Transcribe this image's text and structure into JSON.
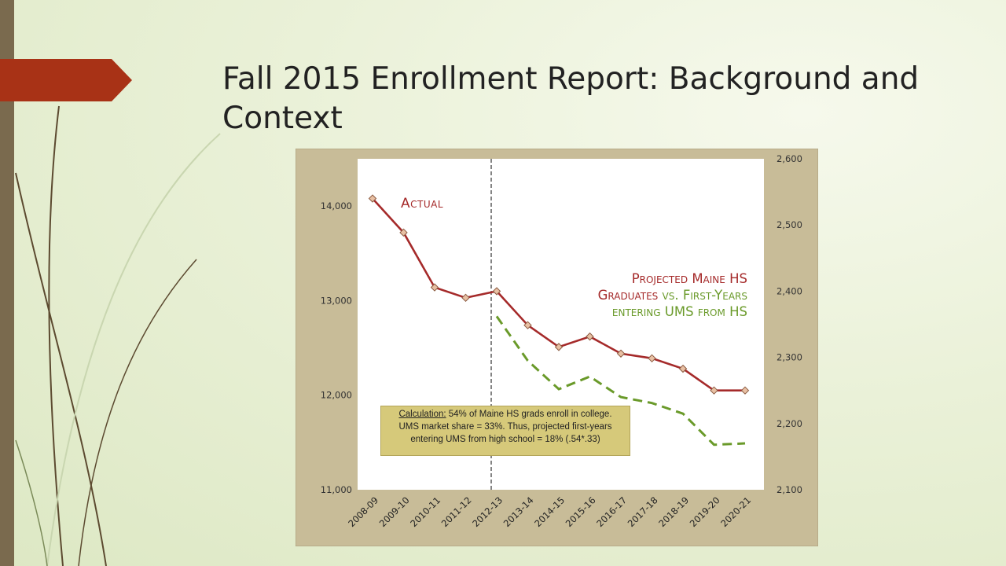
{
  "slide": {
    "title": "Fall 2015 Enrollment Report:  Background and Context"
  },
  "labels": {
    "actual": "Actual",
    "proj_line1_red": "Projected Maine HS",
    "proj_line2_red": "Graduates",
    "proj_line2_vs": "vs.",
    "proj_line2_green": "First-Years",
    "proj_line3_green": "entering  UMS from HS"
  },
  "calculation_box": {
    "heading": "Calculation:",
    "line1_rest": "  54% of Maine HS grads enroll in college.",
    "line2": "UMS market share = 33%.  Thus, projected first-years",
    "line3": "entering UMS from high school = 18% (.54*.33)"
  },
  "colors": {
    "hs_graduates": "#a52a2a",
    "first_years": "#6a9a2a",
    "chart_frame": "#c8bc98",
    "accent": "#a83216"
  },
  "chart_data": {
    "type": "line",
    "categories": [
      "2008-09",
      "2009-10",
      "2010-11",
      "2011-12",
      "2012-13",
      "2013-14",
      "2014-15",
      "2015-16",
      "2016-17",
      "2017-18",
      "2018-19",
      "2019-20",
      "2020-21"
    ],
    "series": [
      {
        "name": "Projected Maine HS Graduates",
        "axis": "left",
        "style": "solid-with-diamond-markers",
        "values": [
          14080,
          13720,
          13140,
          13030,
          13100,
          12740,
          12510,
          12620,
          12440,
          12390,
          12280,
          12050,
          12050
        ]
      },
      {
        "name": "First-Years entering UMS from HS",
        "axis": "right",
        "style": "dashed",
        "values": [
          null,
          null,
          null,
          null,
          2362,
          2295,
          2252,
          2271,
          2240,
          2231,
          2215,
          2168,
          2170
        ]
      }
    ],
    "y_left": {
      "ylim": [
        11000,
        14500
      ],
      "ticks": [
        11000,
        12000,
        13000,
        14000
      ],
      "tick_labels": [
        "11,000",
        "12,000",
        "13,000",
        "14,000"
      ]
    },
    "y_right": {
      "ylim": [
        2100,
        2600
      ],
      "ticks": [
        2100,
        2200,
        2300,
        2400,
        2500,
        2600
      ],
      "tick_labels": [
        "2,100",
        "2,200",
        "2,300",
        "2,400",
        "2,500",
        "2,600"
      ]
    },
    "divider_after_category": "2012-13",
    "grid": false,
    "annotations": [
      "Actual",
      "Projected Maine HS Graduates vs. First-Years entering UMS from HS"
    ]
  }
}
